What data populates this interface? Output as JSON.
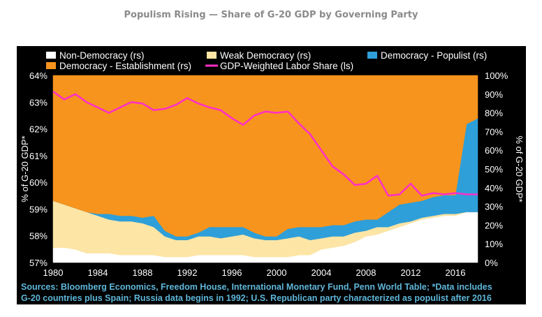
{
  "page_title": "Populism Rising — Share of G-20 GDP by Governing Party",
  "sources": [
    "Sources: Bloomberg Economics, Freedom House, International Monetary Fund, Penn World Table; *Data includes",
    "G-20 countries plus Spain; Russia data begins in 1992; U.S. Republican party characterized as populist after 2016"
  ],
  "colors": {
    "background": "#000000",
    "non_democracy": "#ffffff",
    "weak_democracy": "#fde5a6",
    "democracy_populist": "#2e9fd9",
    "democracy_establishment": "#f7941d",
    "labor_share": "#ff2ec8",
    "text": "#ffffff"
  },
  "chart_data": {
    "type": "area",
    "title": "",
    "x": [
      1980,
      1981,
      1982,
      1983,
      1984,
      1985,
      1986,
      1987,
      1988,
      1989,
      1990,
      1991,
      1992,
      1993,
      1994,
      1995,
      1996,
      1997,
      1998,
      1999,
      2000,
      2001,
      2002,
      2003,
      2004,
      2005,
      2006,
      2007,
      2008,
      2009,
      2010,
      2011,
      2012,
      2013,
      2014,
      2015,
      2016,
      2017,
      2018
    ],
    "xticks": [
      1980,
      1984,
      1988,
      1992,
      1996,
      2000,
      2004,
      2008,
      2012,
      2016
    ],
    "ylabel_left": "% of G-20 GDP*",
    "ylabel_right": "% of G-20 GDP*",
    "ylim_left": [
      57,
      64
    ],
    "ylim_right": [
      0,
      100
    ],
    "yticks_left": [
      "57%",
      "58%",
      "59%",
      "60%",
      "61%",
      "62%",
      "63%",
      "64%"
    ],
    "yticks_right": [
      "0%",
      "10%",
      "20%",
      "30%",
      "40%",
      "50%",
      "60%",
      "70%",
      "80%",
      "90%",
      "100%"
    ],
    "legend_placement": "top",
    "stacked_series": [
      {
        "name": "Non-Democracy (rs)",
        "key": "non_democracy",
        "axis": "right",
        "values": [
          8,
          8,
          7,
          5,
          5,
          5,
          4,
          4,
          4,
          4,
          3,
          3,
          3,
          4,
          4,
          4,
          4,
          4,
          3,
          3,
          3,
          3,
          4,
          4,
          7,
          8,
          9,
          11,
          14,
          15,
          17,
          19,
          21,
          23,
          24,
          25,
          25,
          27,
          27
        ]
      },
      {
        "name": "Weak Democracy (rs)",
        "key": "weak_democracy",
        "axis": "right",
        "values": [
          25,
          23,
          22,
          22,
          20,
          18,
          18,
          18,
          17,
          15,
          11,
          9,
          9,
          10,
          10,
          9,
          10,
          11,
          10,
          9,
          9,
          10,
          10,
          8,
          6,
          6,
          5,
          5,
          3,
          4,
          2,
          2,
          1,
          1,
          1,
          1,
          1,
          0,
          0
        ]
      },
      {
        "name": "Democracy - Populist (rs)",
        "key": "democracy_populist",
        "axis": "right",
        "values": [
          0,
          0,
          0,
          0,
          1,
          3,
          3,
          3,
          3,
          6,
          3,
          2,
          2,
          2,
          5,
          6,
          5,
          4,
          3,
          2,
          2,
          5,
          5,
          7,
          6,
          6,
          6,
          6,
          6,
          4,
          8,
          10,
          10,
          9,
          10,
          10,
          10,
          47,
          50
        ]
      },
      {
        "name": "Democracy - Establishment (rs)",
        "key": "democracy_establishment",
        "axis": "right",
        "values": [
          67,
          69,
          71,
          73,
          74,
          74,
          75,
          75,
          76,
          75,
          83,
          86,
          86,
          84,
          81,
          81,
          81,
          81,
          84,
          86,
          86,
          82,
          81,
          81,
          81,
          80,
          80,
          78,
          77,
          77,
          73,
          69,
          68,
          67,
          65,
          64,
          64,
          26,
          23
        ]
      }
    ],
    "line_series": [
      {
        "name": "GDP-Weighted Labor Share (ls)",
        "key": "labor_share",
        "axis": "left",
        "values": [
          63.4,
          63.1,
          63.3,
          63.0,
          62.8,
          62.6,
          62.8,
          63.0,
          62.95,
          62.7,
          62.75,
          62.9,
          63.15,
          62.95,
          62.8,
          62.7,
          62.4,
          62.15,
          62.5,
          62.65,
          62.6,
          62.65,
          62.2,
          61.8,
          61.2,
          60.6,
          60.3,
          59.9,
          59.95,
          60.25,
          59.5,
          59.55,
          59.95,
          59.5,
          59.6,
          59.55,
          59.6,
          59.55,
          59.55
        ]
      }
    ]
  }
}
